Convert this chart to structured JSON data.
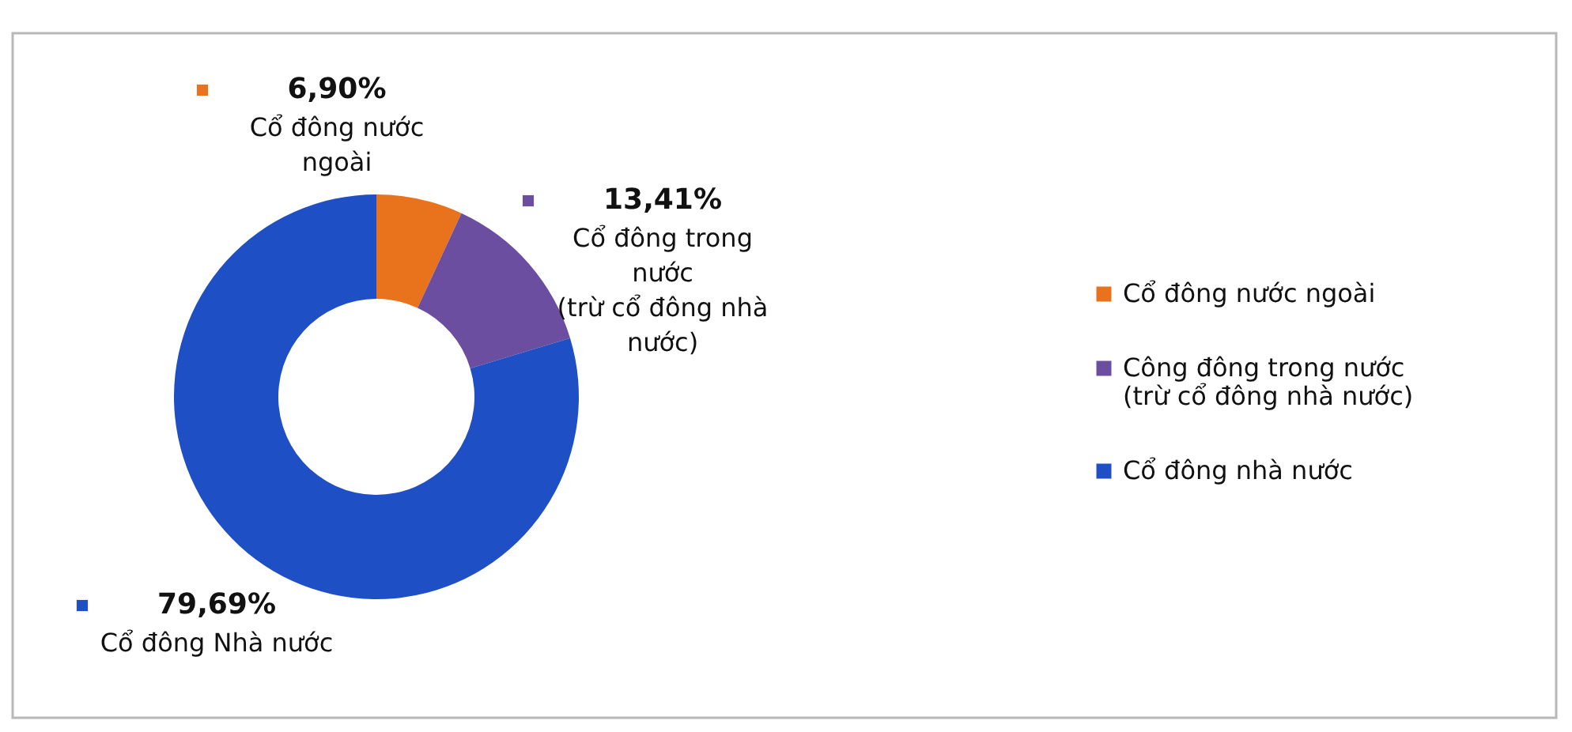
{
  "chart_data": {
    "type": "donut",
    "categories": [
      "Cổ đông nước ngoài",
      "Công đông trong nước (trừ cổ đông nhà nước)",
      "Cổ đông nhà nước"
    ],
    "values": [
      6.9,
      13.41,
      79.69
    ],
    "colors": [
      "#e8731c",
      "#6b4ea0",
      "#1f4fc4"
    ],
    "value_labels": [
      "6,90%",
      "13,41%",
      "79,69%"
    ],
    "annotations": [
      "Cổ đông nước ngoài",
      "Cổ đông trong nước (trừ cổ đông nhà nước)",
      "Cổ đông Nhà nước"
    ],
    "legend": "right"
  }
}
